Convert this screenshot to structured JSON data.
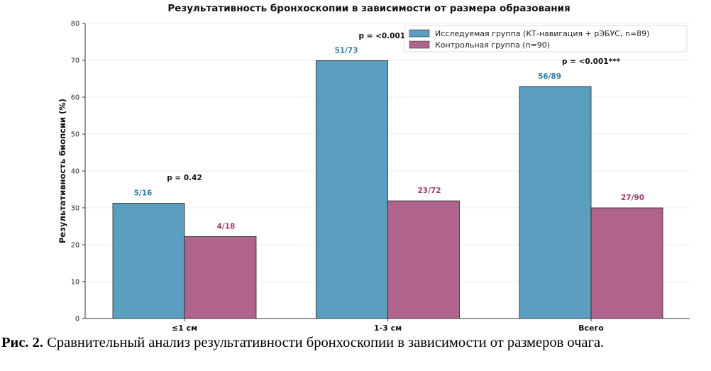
{
  "chart_data": {
    "type": "bar",
    "title": "Результативность бронхоскопии в зависимости от размера образования",
    "xlabel": "",
    "ylabel": "Результативность биопсии (%)",
    "ylim": [
      0,
      80
    ],
    "yticks": [
      0,
      10,
      20,
      30,
      40,
      50,
      60,
      70,
      80
    ],
    "grid": true,
    "legend_position": "top-right",
    "categories": [
      "≤1 см",
      "1-3 см",
      "Всего"
    ],
    "series": [
      {
        "name": "Исследуемая группа (КТ-навигация + рЭБУС, n=89)",
        "color": "#5b9ec0",
        "label_color": "#2f7fa8",
        "values": [
          31.25,
          69.9,
          62.9
        ],
        "labels": [
          "5/16",
          "51/73",
          "56/89"
        ]
      },
      {
        "name": "Контрольная группа (n=90)",
        "color": "#b0638d",
        "label_color": "#9b3f6f",
        "values": [
          22.2,
          31.9,
          30.0
        ],
        "labels": [
          "4/18",
          "23/72",
          "27/90"
        ]
      }
    ],
    "p_values": [
      {
        "text": "p = 0.42",
        "y": 37.5
      },
      {
        "text": "p = <0.001***",
        "y": 76
      },
      {
        "text": "p = <0.001***",
        "y": 69
      }
    ]
  },
  "caption": {
    "label": "Рис. 2.",
    "text": " Сравнительный анализ результативности бронхоскопии в зависимости от размеров очага."
  }
}
